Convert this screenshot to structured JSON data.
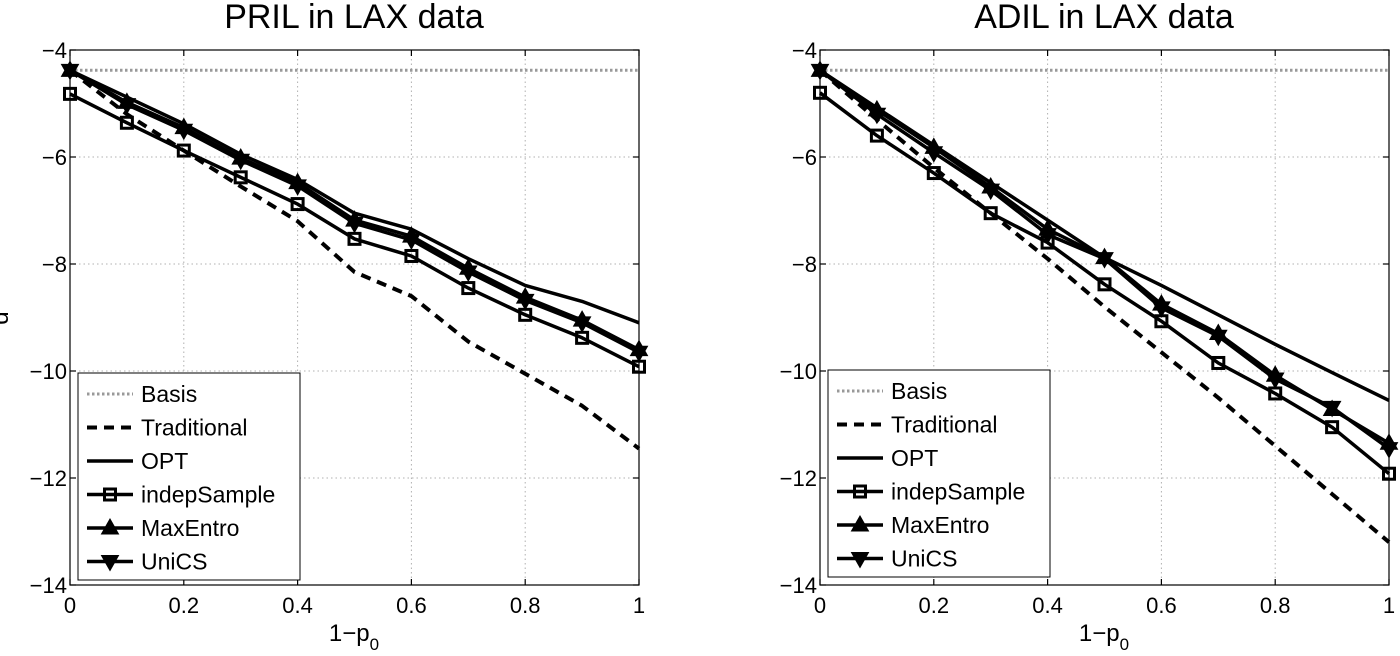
{
  "chart_data": [
    {
      "type": "line",
      "title": "PRIL in LAX data",
      "xlabel": "1−p",
      "xlabel_sub": "0",
      "ylabel": "d",
      "xlim": [
        0,
        1
      ],
      "ylim": [
        -14,
        -4
      ],
      "x_ticks": [
        0,
        0.2,
        0.4,
        0.6,
        0.8,
        1
      ],
      "x_tick_labels": [
        "0",
        "0.2",
        "0.4",
        "0.6",
        "0.8",
        "1"
      ],
      "y_ticks": [
        -4,
        -6,
        -8,
        -10,
        -12,
        -14
      ],
      "y_tick_labels": [
        "−4",
        "−6",
        "−8",
        "−10",
        "−12",
        "−14"
      ],
      "grid": true,
      "legend_position": "bottom-left",
      "x": [
        0,
        0.1,
        0.2,
        0.3,
        0.4,
        0.5,
        0.6,
        0.7,
        0.8,
        0.9,
        1.0
      ],
      "series": [
        {
          "name": "Basis",
          "style": "dotted",
          "marker": "none",
          "color": "#999999",
          "values": [
            -4.38,
            -4.38,
            -4.38,
            -4.38,
            -4.38,
            -4.38,
            -4.38,
            -4.38,
            -4.38,
            -4.38,
            -4.38
          ]
        },
        {
          "name": "Traditional",
          "style": "dashed",
          "marker": "none",
          "color": "#000000",
          "values": [
            -4.38,
            -5.2,
            -5.88,
            -6.55,
            -7.2,
            -8.15,
            -8.6,
            -9.45,
            -10.05,
            -10.65,
            -11.45
          ]
        },
        {
          "name": "OPT",
          "style": "solid",
          "marker": "none",
          "color": "#000000",
          "values": [
            -4.38,
            -4.88,
            -5.38,
            -5.95,
            -6.42,
            -7.05,
            -7.35,
            -7.9,
            -8.4,
            -8.7,
            -9.1
          ]
        },
        {
          "name": "indepSample",
          "style": "solid",
          "marker": "square",
          "color": "#000000",
          "values": [
            -4.82,
            -5.36,
            -5.88,
            -6.38,
            -6.88,
            -7.53,
            -7.85,
            -8.45,
            -8.95,
            -9.38,
            -9.92
          ]
        },
        {
          "name": "MaxEntro",
          "style": "solid",
          "marker": "triangle-up",
          "color": "#000000",
          "values": [
            -4.38,
            -4.98,
            -5.45,
            -6.02,
            -6.48,
            -7.18,
            -7.48,
            -8.08,
            -8.62,
            -9.05,
            -9.6
          ]
        },
        {
          "name": "UniCS",
          "style": "solid",
          "marker": "triangle-down",
          "color": "#000000",
          "values": [
            -4.38,
            -5.02,
            -5.5,
            -6.06,
            -6.54,
            -7.24,
            -7.55,
            -8.15,
            -8.68,
            -9.1,
            -9.65
          ]
        }
      ]
    },
    {
      "type": "line",
      "title": "ADIL in LAX data",
      "xlabel": "1−p",
      "xlabel_sub": "0",
      "ylabel": "",
      "xlim": [
        0,
        1
      ],
      "ylim": [
        -14,
        -4
      ],
      "x_ticks": [
        0,
        0.2,
        0.4,
        0.6,
        0.8,
        1
      ],
      "x_tick_labels": [
        "0",
        "0.2",
        "0.4",
        "0.6",
        "0.8",
        "1"
      ],
      "y_ticks": [
        -4,
        -6,
        -8,
        -10,
        -12,
        -14
      ],
      "y_tick_labels": [
        "−4",
        "−6",
        "−8",
        "−10",
        "−12",
        "−14"
      ],
      "grid": true,
      "legend_position": "bottom-left",
      "x": [
        0,
        0.1,
        0.2,
        0.3,
        0.4,
        0.5,
        0.6,
        0.7,
        0.8,
        0.9,
        1.0
      ],
      "series": [
        {
          "name": "Basis",
          "style": "dotted",
          "marker": "none",
          "color": "#999999",
          "values": [
            -4.38,
            -4.38,
            -4.38,
            -4.38,
            -4.38,
            -4.38,
            -4.38,
            -4.38,
            -4.38,
            -4.38,
            -4.38
          ]
        },
        {
          "name": "Traditional",
          "style": "dashed",
          "marker": "none",
          "color": "#000000",
          "values": [
            -4.38,
            -5.3,
            -6.2,
            -7.05,
            -7.9,
            -8.8,
            -9.65,
            -10.5,
            -11.4,
            -12.3,
            -13.2
          ]
        },
        {
          "name": "OPT",
          "style": "solid",
          "marker": "none",
          "color": "#000000",
          "values": [
            -4.38,
            -5.08,
            -5.78,
            -6.48,
            -7.18,
            -7.88,
            -8.4,
            -8.95,
            -9.5,
            -10.03,
            -10.55
          ]
        },
        {
          "name": "indepSample",
          "style": "solid",
          "marker": "square",
          "color": "#000000",
          "values": [
            -4.8,
            -5.6,
            -6.3,
            -7.05,
            -7.6,
            -8.38,
            -9.07,
            -9.85,
            -10.42,
            -11.05,
            -11.92
          ]
        },
        {
          "name": "MaxEntro",
          "style": "solid",
          "marker": "triangle-up",
          "color": "#000000",
          "values": [
            -4.38,
            -5.12,
            -5.82,
            -6.56,
            -7.35,
            -7.88,
            -8.75,
            -9.3,
            -10.08,
            -10.72,
            -11.35
          ]
        },
        {
          "name": "UniCS",
          "style": "solid",
          "marker": "triangle-down",
          "color": "#000000",
          "values": [
            -4.38,
            -5.2,
            -5.92,
            -6.62,
            -7.45,
            -7.9,
            -8.82,
            -9.35,
            -10.15,
            -10.68,
            -11.45
          ]
        }
      ]
    }
  ]
}
